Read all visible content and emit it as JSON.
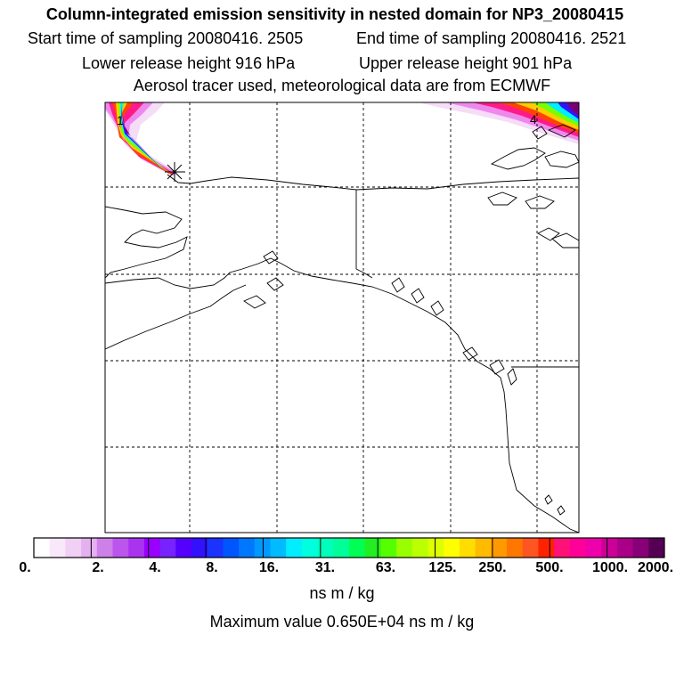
{
  "title": "Column-integrated emission sensitivity in nested domain for NP3_20080415",
  "header": {
    "start_time": "Start time of sampling 20080416.  2505",
    "end_time": "End time of sampling 20080416.  2521",
    "lower_release": "Lower release height  916 hPa",
    "upper_release": "Upper release height  901 hPa",
    "tracer_info": "Aerosol tracer used, meteorological data are from ECMWF"
  },
  "map": {
    "plume_labels": [
      "1",
      "4"
    ],
    "release_marker_icon": "star-cross-icon",
    "frame_color": "#000000"
  },
  "colorbar": {
    "tick_labels": [
      "0.",
      "2.",
      "4.",
      "8.",
      "16.",
      "31.",
      "63.",
      "125.",
      "250.",
      "500.",
      "1000.",
      "2000."
    ],
    "colors": [
      "#ffffff",
      "#f8e8fa",
      "#f0d0f5",
      "#e5b0ef",
      "#cc80e8",
      "#bb55ee",
      "#aa33f0",
      "#9900ff",
      "#7722ff",
      "#5500ff",
      "#3311ff",
      "#1a33ff",
      "#0055ff",
      "#0077ff",
      "#0099ff",
      "#00bbff",
      "#00eeff",
      "#00ffdd",
      "#00ffbb",
      "#00ff99",
      "#00ff55",
      "#22ee22",
      "#55ff00",
      "#99ff00",
      "#bbff00",
      "#ddff00",
      "#ffff00",
      "#ffdd00",
      "#ffbb00",
      "#ff9900",
      "#ff7700",
      "#ff5522",
      "#ff2200",
      "#ff1177",
      "#ff0099",
      "#ee00aa",
      "#cc0099",
      "#aa0088",
      "#880077",
      "#550055"
    ],
    "units": "ns m / kg"
  },
  "max_value": "Maximum value  0.650E+04 ns m / kg"
}
